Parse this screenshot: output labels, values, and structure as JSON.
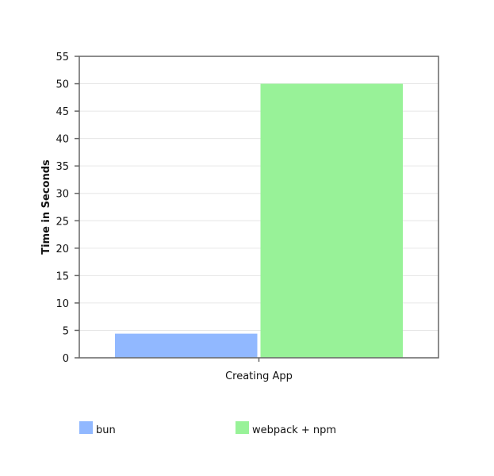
{
  "chart_data": {
    "type": "bar",
    "title": "",
    "xlabel": "",
    "ylabel": "Time in Seconds",
    "categories": [
      "Creating App"
    ],
    "series": [
      {
        "name": "bun",
        "values": [
          4.4
        ],
        "color": "#91b8ff"
      },
      {
        "name": "webpack + npm",
        "values": [
          50
        ],
        "color": "#98f298"
      }
    ],
    "ylim": [
      0,
      55
    ],
    "yticks": [
      0,
      5,
      10,
      15,
      20,
      25,
      30,
      35,
      40,
      45,
      50,
      55
    ],
    "grid": true,
    "legend_position": "bottom"
  }
}
